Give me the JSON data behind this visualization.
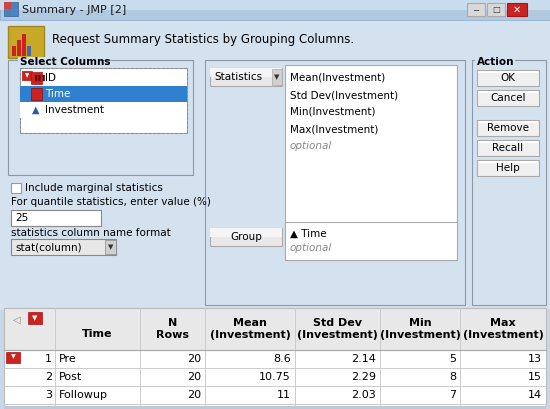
{
  "title": "Summary - JMP [2]",
  "subtitle": "Request Summary Statistics by Grouping Columns.",
  "bg_outer": "#c8d8e8",
  "bg_dialog": "#dce8f4",
  "bg_white": "#ffffff",
  "bg_listbox": "#ffffff",
  "bg_selected": "#3080d0",
  "bg_header": "#e8e8e8",
  "color_red": "#cc2222",
  "color_btn": "#e8e8e8",
  "color_gray_text": "#888888",
  "color_black": "#000000",
  "color_blue_text": "#1a1a8c",
  "select_columns_items": [
    "ID",
    "Time",
    "Investment"
  ],
  "statistics_items": [
    "Mean(Investment)",
    "Std Dev(Investment)",
    "Min(Investment)",
    "Max(Investment)"
  ],
  "action_buttons": [
    "OK",
    "Cancel",
    "Remove",
    "Recall",
    "Help"
  ],
  "quantile_value": "25",
  "format_value": "stat(column)",
  "group_label": "Group",
  "time_label": "▲ Time",
  "optional_label": "optional",
  "include_marginal": "Include marginal statistics",
  "quantile_label": "For quantile statistics, enter value (%)",
  "stats_format_label": "statistics column name format",
  "table_col1_headers": [
    "",
    "Time"
  ],
  "table_headers_line1": [
    "N",
    "Mean",
    "Std Dev",
    "Min",
    "Max"
  ],
  "table_headers_line2": [
    "Rows",
    "(Investment)",
    "(Investment)",
    "(Investment)",
    "(Investment)"
  ],
  "table_data": [
    [
      1,
      "Pre",
      20,
      "8.6",
      "2.14",
      "5",
      "13"
    ],
    [
      2,
      "Post",
      20,
      "10.75",
      "2.29",
      "8",
      "15"
    ],
    [
      3,
      "Followup",
      20,
      "11",
      "2.03",
      "7",
      "14"
    ]
  ],
  "fig_width": 5.5,
  "fig_height": 4.09,
  "fig_dpi": 100
}
